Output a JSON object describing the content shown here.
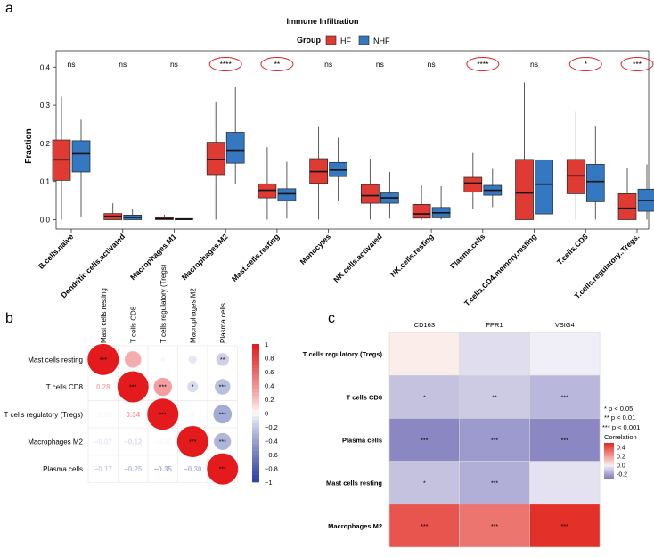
{
  "panel_labels": [
    "a",
    "b",
    "c"
  ],
  "chart_data": [
    {
      "type": "box",
      "title": "Immune Infiltration",
      "legend_title": "Group",
      "series": [
        {
          "name": "HF",
          "color": "#e03b33"
        },
        {
          "name": "NHF",
          "color": "#3478c2"
        }
      ],
      "ylabel": "Fraction",
      "ylim": [
        0,
        0.42
      ],
      "yticks": [
        0.0,
        0.1,
        0.2,
        0.3,
        0.4
      ],
      "ytick_labels": [
        "0.0",
        "0.1",
        "0.2",
        "0.3",
        "0.4"
      ],
      "categories": [
        "B.cells.naive",
        "Dendritic.cells.activated",
        "Macrophages.M1",
        "Macrophages.M2",
        "Mast.cells.resting",
        "Monocytes",
        "NK.cells.activated",
        "NK.cells.resting",
        "Plasma.cells",
        "T.cells.CD4.memory.resting",
        "T.cells.CD8",
        "T.cells.regulatory..Tregs."
      ],
      "significance": [
        "ns",
        "ns",
        "ns",
        "****",
        "**",
        "ns",
        "ns",
        "ns",
        "****",
        "ns",
        "*",
        "***"
      ],
      "boxes": {
        "HF": [
          {
            "min": 0.0,
            "q1": 0.103,
            "median": 0.157,
            "q3": 0.209,
            "max": 0.322
          },
          {
            "min": 0.0,
            "q1": 0.0,
            "median": 0.009,
            "q3": 0.016,
            "max": 0.043
          },
          {
            "min": 0.0,
            "q1": 0.0,
            "median": 0.003,
            "q3": 0.007,
            "max": 0.013
          },
          {
            "min": 0.0,
            "q1": 0.118,
            "median": 0.158,
            "q3": 0.203,
            "max": 0.31
          },
          {
            "min": 0.0,
            "q1": 0.057,
            "median": 0.077,
            "q3": 0.094,
            "max": 0.19
          },
          {
            "min": 0.0,
            "q1": 0.095,
            "median": 0.126,
            "q3": 0.16,
            "max": 0.245
          },
          {
            "min": 0.0,
            "q1": 0.043,
            "median": 0.063,
            "q3": 0.092,
            "max": 0.16
          },
          {
            "min": 0.0,
            "q1": 0.004,
            "median": 0.015,
            "q3": 0.04,
            "max": 0.09
          },
          {
            "min": 0.028,
            "q1": 0.072,
            "median": 0.096,
            "q3": 0.111,
            "max": 0.175
          },
          {
            "min": 0.0,
            "q1": 0.0,
            "median": 0.07,
            "q3": 0.158,
            "max": 0.36
          },
          {
            "min": 0.0,
            "q1": 0.068,
            "median": 0.115,
            "q3": 0.158,
            "max": 0.283
          },
          {
            "min": 0.0,
            "q1": 0.0,
            "median": 0.03,
            "q3": 0.068,
            "max": 0.135
          }
        ],
        "NHF": [
          {
            "min": 0.008,
            "q1": 0.125,
            "median": 0.173,
            "q3": 0.207,
            "max": 0.262
          },
          {
            "min": 0.0,
            "q1": 0.0,
            "median": 0.006,
            "q3": 0.012,
            "max": 0.027
          },
          {
            "min": 0.0,
            "q1": 0.0,
            "median": 0.001,
            "q3": 0.003,
            "max": 0.008
          },
          {
            "min": 0.093,
            "q1": 0.148,
            "median": 0.182,
            "q3": 0.229,
            "max": 0.347
          },
          {
            "min": 0.003,
            "q1": 0.05,
            "median": 0.068,
            "q3": 0.081,
            "max": 0.152
          },
          {
            "min": 0.05,
            "q1": 0.113,
            "median": 0.13,
            "q3": 0.15,
            "max": 0.215
          },
          {
            "min": 0.003,
            "q1": 0.043,
            "median": 0.057,
            "q3": 0.07,
            "max": 0.125
          },
          {
            "min": 0.0,
            "q1": 0.005,
            "median": 0.018,
            "q3": 0.032,
            "max": 0.088
          },
          {
            "min": 0.033,
            "q1": 0.064,
            "median": 0.077,
            "q3": 0.09,
            "max": 0.133
          },
          {
            "min": 0.0,
            "q1": 0.015,
            "median": 0.093,
            "q3": 0.157,
            "max": 0.345
          },
          {
            "min": 0.0,
            "q1": 0.047,
            "median": 0.1,
            "q3": 0.145,
            "max": 0.246
          },
          {
            "min": 0.0,
            "q1": 0.022,
            "median": 0.05,
            "q3": 0.08,
            "max": 0.145
          }
        ]
      }
    },
    {
      "type": "correlogram",
      "row_labels": [
        "Mast cells resting",
        "T cells CD8",
        "T cells regulatory (Tregs)",
        "Macrophages M2",
        "Plasma cells"
      ],
      "col_labels": [
        "Mast cells resting",
        "T cells CD8",
        "T cells regulatory (Tregs)",
        "Macrophages M2",
        "Plasma cells"
      ],
      "upper": [
        [
          {
            "r": 1.0,
            "stars": "***"
          },
          {
            "r": 0.28,
            "stars": ""
          },
          {
            "r": -0.02,
            "stars": ""
          },
          {
            "r": -0.07,
            "stars": ""
          },
          {
            "r": -0.17,
            "stars": "**"
          }
        ],
        [
          null,
          {
            "r": 1.0,
            "stars": "***"
          },
          {
            "r": 0.34,
            "stars": "***"
          },
          {
            "r": -0.12,
            "stars": "*"
          },
          {
            "r": -0.25,
            "stars": "***"
          }
        ],
        [
          null,
          null,
          {
            "r": 1.0,
            "stars": "***"
          },
          {
            "r": -0.02,
            "stars": ""
          },
          {
            "r": -0.35,
            "stars": "***"
          }
        ],
        [
          null,
          null,
          null,
          {
            "r": 1.0,
            "stars": "***"
          },
          {
            "r": -0.3,
            "stars": "***"
          }
        ],
        [
          null,
          null,
          null,
          null,
          {
            "r": 1.0,
            "stars": "***"
          }
        ]
      ],
      "lower_text": [
        [
          null,
          null,
          null,
          null,
          null
        ],
        [
          "0.28",
          null,
          null,
          null,
          null
        ],
        [
          "−0.02",
          "0.34",
          null,
          null,
          null
        ],
        [
          "−0.07",
          "−0.12",
          "−0.02",
          null,
          null
        ],
        [
          "−0.17",
          "−0.25",
          "−0.35",
          "−0.30",
          null
        ]
      ],
      "lower_values": [
        [
          null,
          null,
          null,
          null,
          null
        ],
        [
          0.28,
          null,
          null,
          null,
          null
        ],
        [
          -0.02,
          0.34,
          null,
          null,
          null
        ],
        [
          -0.07,
          -0.12,
          -0.02,
          null,
          null
        ],
        [
          -0.17,
          -0.25,
          -0.35,
          -0.3,
          null
        ]
      ],
      "colorbar_range": [
        -1,
        1
      ],
      "colorbar_ticks": [
        "1",
        "0.8",
        "0.6",
        "0.4",
        "0.2",
        "0",
        "−0.2",
        "−0.4",
        "−0.6",
        "−0.8",
        "−1"
      ]
    },
    {
      "type": "heatmap",
      "columns": [
        "CD163",
        "FPR1",
        "VSIG4"
      ],
      "rows": [
        "T cells regulatory (Tregs)",
        "T cells CD8",
        "Plasma cells",
        "Mast cells resting",
        "Macrophages M2"
      ],
      "values": [
        [
          0.0,
          -0.05,
          -0.01
        ],
        [
          -0.12,
          -0.1,
          -0.15
        ],
        [
          -0.27,
          -0.22,
          -0.27
        ],
        [
          -0.12,
          -0.17,
          -0.04
        ],
        [
          0.38,
          0.3,
          0.47
        ]
      ],
      "stars": [
        [
          "",
          "",
          ""
        ],
        [
          "*",
          "**",
          "***"
        ],
        [
          "***",
          "***",
          "***"
        ],
        [
          "*",
          "***",
          ""
        ],
        [
          "***",
          "***",
          "***"
        ]
      ],
      "significance_legend": [
        "* p < 0.05",
        "** p < 0.01",
        "*** p < 0.001"
      ],
      "colorbar_title": "Correlation",
      "colorbar_ticks": [
        "0.4",
        "0.2",
        "0.0",
        "-0.2"
      ]
    }
  ]
}
